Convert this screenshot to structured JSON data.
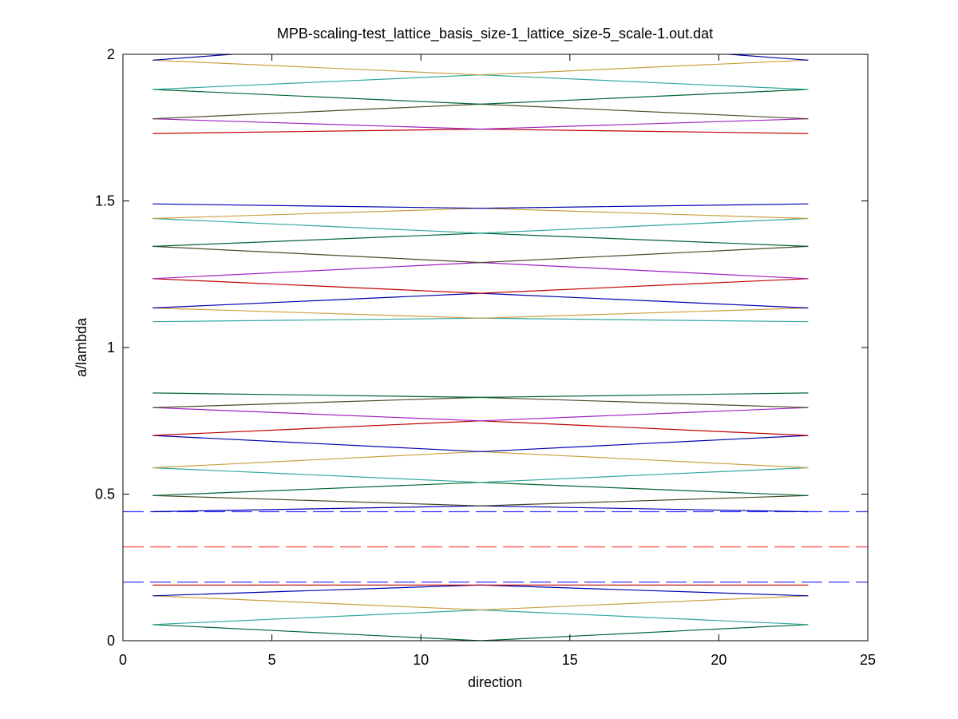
{
  "chart_data": {
    "type": "line",
    "title": "MPB-scaling-test_lattice_basis_size-1_lattice_size-5_scale-1.out.dat",
    "xlabel": "direction",
    "ylabel": "a/lambda",
    "xlim": [
      0,
      25
    ],
    "ylim": [
      0,
      2
    ],
    "xticks": [
      0,
      5,
      10,
      15,
      20,
      25
    ],
    "xtick_labels": [
      "0",
      "5",
      "10",
      "15",
      "20",
      "25"
    ],
    "yticks": [
      0,
      0.5,
      1,
      1.5,
      2
    ],
    "ytick_labels": [
      "0",
      "0.5",
      "1",
      "1.5",
      "2"
    ],
    "grid": false,
    "legend": "none",
    "band_x": [
      1,
      12,
      23
    ],
    "bands": [
      {
        "values": [
          0.055,
          0.0,
          0.055
        ],
        "color": "#006633"
      },
      {
        "values": [
          0.055,
          0.105,
          0.055
        ],
        "color": "#33a8a0"
      },
      {
        "values": [
          0.153,
          0.105,
          0.153
        ],
        "color": "#c8a040"
      },
      {
        "values": [
          0.153,
          0.19,
          0.153
        ],
        "color": "#0000b0"
      },
      {
        "values": [
          0.19,
          0.19,
          0.19
        ],
        "color": "#c00000"
      },
      {
        "values": [
          0.44,
          0.46,
          0.44
        ],
        "color": "#0000b0"
      },
      {
        "values": [
          0.495,
          0.46,
          0.495
        ],
        "color": "#4a4a2a"
      },
      {
        "values": [
          0.495,
          0.54,
          0.495
        ],
        "color": "#006633"
      },
      {
        "values": [
          0.59,
          0.54,
          0.59
        ],
        "color": "#33a8a0"
      },
      {
        "values": [
          0.59,
          0.645,
          0.59
        ],
        "color": "#c8a040"
      },
      {
        "values": [
          0.7,
          0.645,
          0.7
        ],
        "color": "#0000b0"
      },
      {
        "values": [
          0.7,
          0.75,
          0.7
        ],
        "color": "#c00000"
      },
      {
        "values": [
          0.795,
          0.75,
          0.795
        ],
        "color": "#a020c0"
      },
      {
        "values": [
          0.795,
          0.83,
          0.795
        ],
        "color": "#4a4a2a"
      },
      {
        "values": [
          0.845,
          0.83,
          0.845
        ],
        "color": "#006633"
      },
      {
        "values": [
          1.088,
          1.1,
          1.088
        ],
        "color": "#33a8a0"
      },
      {
        "values": [
          1.135,
          1.1,
          1.135
        ],
        "color": "#c8a040"
      },
      {
        "values": [
          1.135,
          1.185,
          1.135
        ],
        "color": "#0000b0"
      },
      {
        "values": [
          1.235,
          1.185,
          1.235
        ],
        "color": "#c00000"
      },
      {
        "values": [
          1.235,
          1.29,
          1.235
        ],
        "color": "#a020c0"
      },
      {
        "values": [
          1.345,
          1.29,
          1.345
        ],
        "color": "#4a4a2a"
      },
      {
        "values": [
          1.345,
          1.39,
          1.345
        ],
        "color": "#006633"
      },
      {
        "values": [
          1.44,
          1.39,
          1.44
        ],
        "color": "#33a8a0"
      },
      {
        "values": [
          1.44,
          1.475,
          1.44
        ],
        "color": "#c8a040"
      },
      {
        "values": [
          1.49,
          1.475,
          1.49
        ],
        "color": "#0000b0"
      },
      {
        "values": [
          1.73,
          1.745,
          1.73
        ],
        "color": "#c00000"
      },
      {
        "values": [
          1.78,
          1.745,
          1.78
        ],
        "color": "#a020c0"
      },
      {
        "values": [
          1.78,
          1.83,
          1.78
        ],
        "color": "#4a4a2a"
      },
      {
        "values": [
          1.88,
          1.83,
          1.88
        ],
        "color": "#006633"
      },
      {
        "values": [
          1.88,
          1.93,
          1.88
        ],
        "color": "#33a8a0"
      },
      {
        "values": [
          1.98,
          1.93,
          1.98
        ],
        "color": "#c8a040"
      }
    ],
    "top_band": {
      "x": [
        1,
        5,
        12,
        19,
        23
      ],
      "values": [
        1.98,
        2.01,
        2.05,
        2.01,
        1.98
      ],
      "color": "#0000b0"
    },
    "reference_lines": [
      {
        "y": 0.44,
        "color": "#3333ff",
        "dash": "long"
      },
      {
        "y": 0.32,
        "color": "#ff3333",
        "dash": "long"
      },
      {
        "y": 0.2,
        "color": "#3333ff",
        "dash": "long"
      }
    ]
  }
}
